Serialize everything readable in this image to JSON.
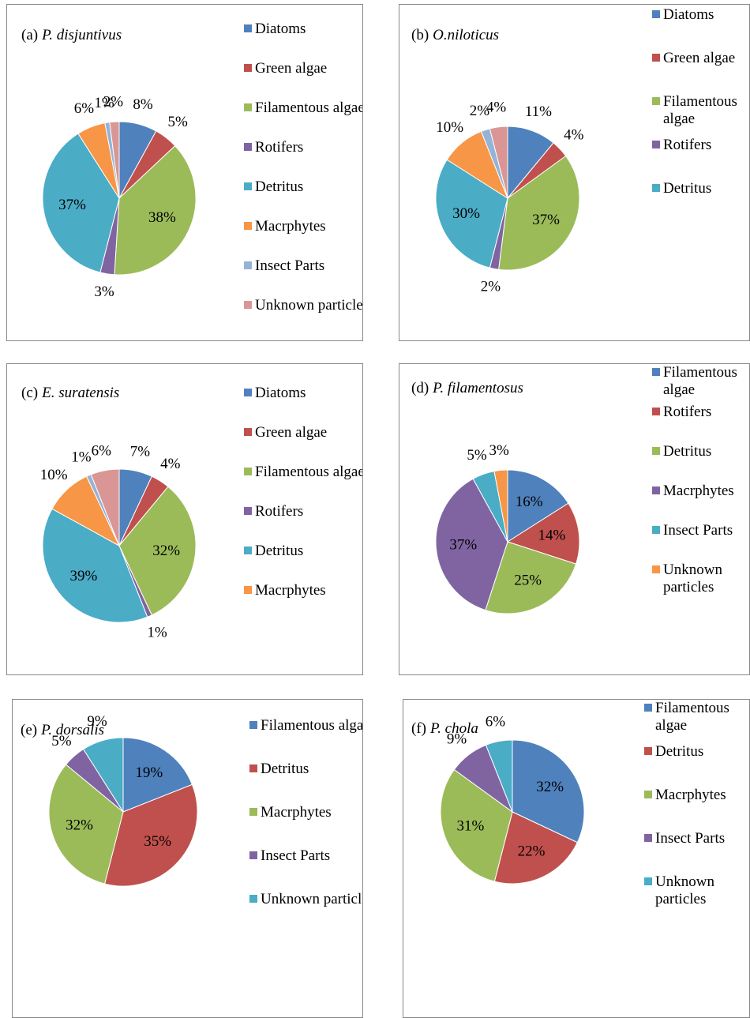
{
  "chart_data": [
    {
      "type": "pie",
      "panel": "(a)",
      "title": "P. disjuntivus",
      "categories": [
        "Diatoms",
        "Green algae",
        "Filamentous algae",
        "Rotifers",
        "Detritus",
        "Macrphytes",
        "Insect Parts",
        "Unknown particles"
      ],
      "values": [
        8,
        5,
        38,
        3,
        37,
        6,
        1,
        2
      ],
      "value_labels": [
        "8%",
        "5%",
        "38%",
        "3%",
        "37%",
        "6%",
        "1%",
        "2%"
      ],
      "colors": [
        "#4F81BD",
        "#C0504D",
        "#9BBB59",
        "#8064A2",
        "#4BACC6",
        "#F79646",
        "#95B3D7",
        "#D99694"
      ]
    },
    {
      "type": "pie",
      "panel": "(b)",
      "title": "O.niloticus",
      "categories": [
        "Diatoms",
        "Green algae",
        "Filamentous algae",
        "Rotifers",
        "Detritus",
        null,
        null,
        null
      ],
      "values": [
        11,
        4,
        37,
        2,
        30,
        10,
        2,
        4
      ],
      "value_labels": [
        "11%",
        "4%",
        "37%",
        "2%",
        "30%",
        "10%",
        "2%",
        "4%"
      ],
      "colors": [
        "#4F81BD",
        "#C0504D",
        "#9BBB59",
        "#8064A2",
        "#4BACC6",
        "#F79646",
        "#95B3D7",
        "#D99694"
      ]
    },
    {
      "type": "pie",
      "panel": "(c)",
      "title": "E. suratensis",
      "categories": [
        "Diatoms",
        "Green algae",
        "Filamentous algae",
        "Rotifers",
        "Detritus",
        "Macrphytes",
        null,
        null
      ],
      "values": [
        7,
        4,
        32,
        1,
        39,
        10,
        1,
        6
      ],
      "value_labels": [
        "7%",
        "4%",
        "32%",
        "1%",
        "39%",
        "10%",
        "1%",
        "6%"
      ],
      "colors": [
        "#4F81BD",
        "#C0504D",
        "#9BBB59",
        "#8064A2",
        "#4BACC6",
        "#F79646",
        "#95B3D7",
        "#D99694"
      ]
    },
    {
      "type": "pie",
      "panel": "(d)",
      "title": "P. filamentosus",
      "categories": [
        "Filamentous algae",
        "Rotifers",
        "Detritus",
        "Macrphytes",
        "Insect Parts",
        "Unknown particles"
      ],
      "values": [
        16,
        14,
        25,
        37,
        5,
        3
      ],
      "value_labels": [
        "16%",
        "14%",
        "25%",
        "37%",
        "5%",
        "3%"
      ],
      "colors": [
        "#4F81BD",
        "#C0504D",
        "#9BBB59",
        "#8064A2",
        "#4BACC6",
        "#F79646"
      ]
    },
    {
      "type": "pie",
      "panel": "(e)",
      "title": "P. dorsalis",
      "categories": [
        "Filamentous algae",
        "Detritus",
        "Macrphytes",
        "Insect Parts",
        "Unknown particles"
      ],
      "values": [
        19,
        35,
        32,
        5,
        9
      ],
      "value_labels": [
        "19%",
        "35%",
        "32%",
        "5%",
        "9%"
      ],
      "colors": [
        "#4F81BD",
        "#C0504D",
        "#9BBB59",
        "#8064A2",
        "#4BACC6"
      ]
    },
    {
      "type": "pie",
      "panel": "(f)",
      "title": "P. chola",
      "categories": [
        "Filamentous algae",
        "Detritus",
        "Macrphytes",
        "Insect Parts",
        "Unknown particles"
      ],
      "values": [
        32,
        22,
        31,
        9,
        6
      ],
      "value_labels": [
        "32%",
        "22%",
        "31%",
        "9%",
        "6%"
      ],
      "colors": [
        "#4F81BD",
        "#C0504D",
        "#9BBB59",
        "#8064A2",
        "#4BACC6"
      ]
    }
  ]
}
